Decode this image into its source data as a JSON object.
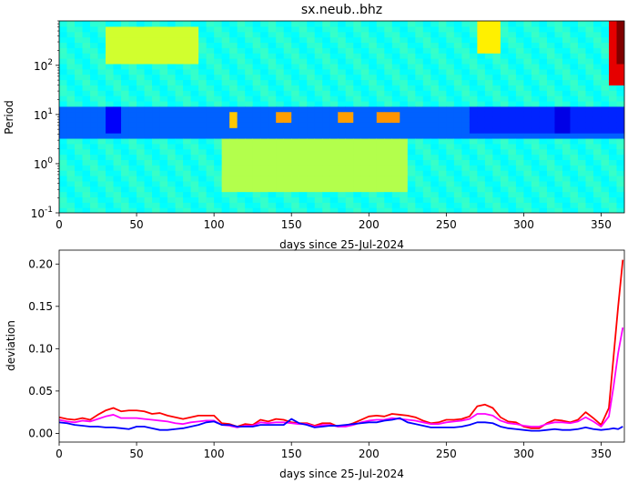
{
  "chart_data": [
    {
      "type": "heatmap",
      "title": "sx.neub..bhz",
      "xlabel": "days since 25-Jul-2024",
      "ylabel": "Period",
      "xlim": [
        0,
        365
      ],
      "ylim": [
        0.1,
        800
      ],
      "y_scale": "log",
      "x_ticks": [
        "0",
        "50",
        "100",
        "150",
        "200",
        "250",
        "300",
        "350"
      ],
      "x_tick_values": [
        0,
        50,
        100,
        150,
        200,
        250,
        300,
        350
      ],
      "y_ticks": [
        "10^-1",
        "10^0",
        "10^1",
        "10^2"
      ],
      "y_tick_values": [
        0.1,
        1,
        10,
        100
      ],
      "colormap": "jet",
      "features": [
        {
          "x": [
            0,
            365
          ],
          "y": [
            3.5,
            16
          ],
          "level": 0.22,
          "note": "low band"
        },
        {
          "x": [
            28,
            38
          ],
          "y": [
            4,
            14
          ],
          "level": 0.12
        },
        {
          "x": [
            265,
            365
          ],
          "y": [
            4,
            14
          ],
          "level": 0.16
        },
        {
          "x": [
            318,
            328
          ],
          "y": [
            4,
            14
          ],
          "level": 0.1
        },
        {
          "x": [
            30,
            90
          ],
          "y": [
            100,
            700
          ],
          "level": 0.58
        },
        {
          "x": [
            105,
            225
          ],
          "y": [
            0.3,
            3
          ],
          "level": 0.55
        },
        {
          "x": [
            108,
            115
          ],
          "y": [
            6,
            12
          ],
          "level": 0.68
        },
        {
          "x": [
            140,
            152
          ],
          "y": [
            7,
            13
          ],
          "level": 0.72
        },
        {
          "x": [
            180,
            190
          ],
          "y": [
            7,
            13
          ],
          "level": 0.72
        },
        {
          "x": [
            205,
            220
          ],
          "y": [
            7,
            13
          ],
          "level": 0.73
        },
        {
          "x": [
            270,
            285
          ],
          "y": [
            200,
            800
          ],
          "level": 0.64
        },
        {
          "x": [
            355,
            365
          ],
          "y": [
            40,
            800
          ],
          "level": 0.9
        },
        {
          "x": [
            360,
            365
          ],
          "y": [
            100,
            800
          ],
          "level": 1.0
        }
      ],
      "background_level": 0.4
    },
    {
      "type": "line",
      "title": "",
      "xlabel": "days since 25-Jul-2024",
      "ylabel": "deviation",
      "xlim": [
        0,
        365
      ],
      "ylim": [
        -0.0103,
        0.2164
      ],
      "x_ticks": [
        "0",
        "50",
        "100",
        "150",
        "200",
        "250",
        "300",
        "350"
      ],
      "x_tick_values": [
        0,
        50,
        100,
        150,
        200,
        250,
        300,
        350
      ],
      "y_ticks": [
        "0.00",
        "0.05",
        "0.10",
        "0.15",
        "0.20"
      ],
      "y_tick_values": [
        0,
        0.05,
        0.1,
        0.15,
        0.2
      ],
      "x": [
        0,
        5,
        10,
        15,
        20,
        25,
        30,
        35,
        40,
        45,
        50,
        55,
        60,
        65,
        70,
        75,
        80,
        85,
        90,
        95,
        100,
        105,
        110,
        115,
        120,
        125,
        130,
        135,
        140,
        145,
        150,
        155,
        160,
        165,
        170,
        175,
        180,
        185,
        190,
        195,
        200,
        205,
        210,
        215,
        220,
        225,
        230,
        235,
        240,
        245,
        250,
        255,
        260,
        265,
        270,
        275,
        280,
        285,
        290,
        295,
        300,
        305,
        310,
        315,
        320,
        325,
        330,
        335,
        340,
        345,
        350,
        355,
        358,
        361,
        364
      ],
      "series": [
        {
          "color": "#ff0000",
          "values": [
            0.019,
            0.017,
            0.016,
            0.018,
            0.016,
            0.022,
            0.027,
            0.03,
            0.026,
            0.027,
            0.027,
            0.026,
            0.023,
            0.024,
            0.021,
            0.019,
            0.017,
            0.019,
            0.021,
            0.021,
            0.021,
            0.012,
            0.011,
            0.008,
            0.011,
            0.01,
            0.016,
            0.014,
            0.017,
            0.016,
            0.013,
            0.012,
            0.012,
            0.009,
            0.012,
            0.012,
            0.008,
            0.009,
            0.012,
            0.016,
            0.02,
            0.021,
            0.02,
            0.023,
            0.022,
            0.021,
            0.019,
            0.015,
            0.012,
            0.013,
            0.016,
            0.016,
            0.017,
            0.02,
            0.032,
            0.034,
            0.03,
            0.019,
            0.014,
            0.013,
            0.008,
            0.006,
            0.006,
            0.012,
            0.016,
            0.015,
            0.013,
            0.016,
            0.025,
            0.018,
            0.01,
            0.03,
            0.09,
            0.15,
            0.205
          ]
        },
        {
          "color": "#ff00ff",
          "values": [
            0.016,
            0.014,
            0.013,
            0.015,
            0.014,
            0.017,
            0.02,
            0.022,
            0.018,
            0.018,
            0.018,
            0.017,
            0.016,
            0.015,
            0.014,
            0.012,
            0.011,
            0.013,
            0.014,
            0.015,
            0.015,
            0.01,
            0.009,
            0.007,
            0.009,
            0.009,
            0.013,
            0.012,
            0.013,
            0.013,
            0.012,
            0.011,
            0.011,
            0.008,
            0.01,
            0.01,
            0.008,
            0.008,
            0.01,
            0.013,
            0.015,
            0.016,
            0.016,
            0.018,
            0.017,
            0.016,
            0.015,
            0.013,
            0.011,
            0.011,
            0.013,
            0.014,
            0.015,
            0.017,
            0.023,
            0.023,
            0.021,
            0.015,
            0.012,
            0.011,
            0.009,
            0.008,
            0.008,
            0.011,
            0.013,
            0.013,
            0.012,
            0.014,
            0.019,
            0.014,
            0.008,
            0.02,
            0.055,
            0.095,
            0.125
          ]
        },
        {
          "color": "#0000ff",
          "values": [
            0.013,
            0.012,
            0.01,
            0.009,
            0.008,
            0.008,
            0.007,
            0.007,
            0.006,
            0.005,
            0.008,
            0.008,
            0.006,
            0.004,
            0.004,
            0.005,
            0.006,
            0.008,
            0.01,
            0.013,
            0.014,
            0.01,
            0.01,
            0.008,
            0.008,
            0.008,
            0.01,
            0.01,
            0.01,
            0.01,
            0.017,
            0.012,
            0.01,
            0.007,
            0.008,
            0.009,
            0.009,
            0.01,
            0.011,
            0.012,
            0.013,
            0.013,
            0.015,
            0.016,
            0.018,
            0.013,
            0.011,
            0.009,
            0.007,
            0.007,
            0.007,
            0.007,
            0.008,
            0.01,
            0.013,
            0.013,
            0.012,
            0.008,
            0.006,
            0.005,
            0.004,
            0.003,
            0.003,
            0.004,
            0.005,
            0.004,
            0.004,
            0.005,
            0.007,
            0.005,
            0.004,
            0.005,
            0.006,
            0.005,
            0.008
          ]
        }
      ]
    }
  ]
}
